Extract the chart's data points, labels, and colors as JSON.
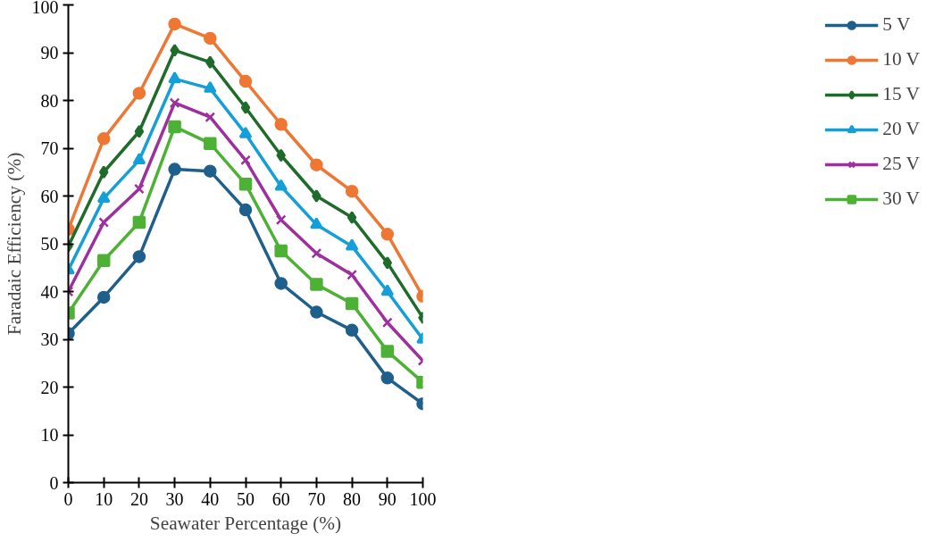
{
  "chart_data": {
    "type": "line",
    "xlabel": "Seawater Percentage (%)",
    "ylabel": "Faradaic Efficiency (%)",
    "x": [
      0,
      10,
      20,
      30,
      40,
      50,
      60,
      70,
      80,
      90,
      100
    ],
    "xlim": [
      0,
      100
    ],
    "xticks": [
      0,
      10,
      20,
      30,
      40,
      50,
      60,
      70,
      80,
      90,
      100
    ],
    "ylim": [
      0,
      100
    ],
    "yticks": [
      0,
      10,
      20,
      30,
      40,
      50,
      60,
      70,
      80,
      90,
      100
    ],
    "grid": false,
    "legend": "right",
    "line_style": "solid",
    "series": [
      {
        "name": "5 V",
        "color": "#1f5f8b",
        "marker": "circle",
        "values": [
          31.2,
          38.8,
          47.3,
          65.6,
          65.2,
          57.1,
          41.7,
          35.7,
          31.9,
          21.9,
          16.5
        ]
      },
      {
        "name": "10 V",
        "color": "#ed7733",
        "marker": "circle",
        "values": [
          53,
          72,
          81.5,
          96,
          93,
          84,
          75,
          66.5,
          61,
          52,
          39
        ]
      },
      {
        "name": "15 V",
        "color": "#1e6b2a",
        "marker": "diamond",
        "values": [
          49.5,
          65,
          73.5,
          90.5,
          88,
          78.5,
          68.5,
          60,
          55.5,
          46,
          34.5
        ]
      },
      {
        "name": "20 V",
        "color": "#149fd8",
        "marker": "triangle",
        "values": [
          44.5,
          59.5,
          67.5,
          84.5,
          82.5,
          73,
          62,
          54,
          49.5,
          40,
          30
        ]
      },
      {
        "name": "25 V",
        "color": "#9e2f9e",
        "marker": "cross",
        "values": [
          40,
          54.5,
          61.5,
          79.5,
          76.5,
          67.5,
          55,
          48,
          43.5,
          33.5,
          25.5
        ]
      },
      {
        "name": "30 V",
        "color": "#4db135",
        "marker": "square",
        "values": [
          35.5,
          46.5,
          54.5,
          74.5,
          71,
          62.5,
          48.5,
          41.5,
          37.5,
          27.5,
          21
        ]
      }
    ]
  }
}
